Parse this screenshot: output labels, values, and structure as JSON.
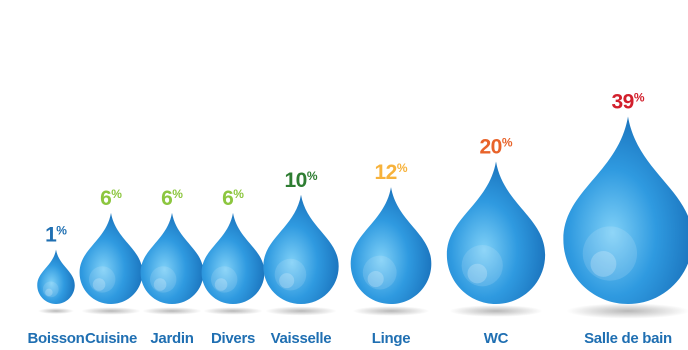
{
  "chart_data": {
    "type": "bar",
    "categories": [
      "Boisson",
      "Cuisine",
      "Jardin",
      "Divers",
      "Vaisselle",
      "Linge",
      "WC",
      "Salle de bain"
    ],
    "values": [
      1,
      6,
      6,
      6,
      10,
      12,
      20,
      39
    ],
    "value_suffix": "%",
    "value_label_colors": [
      "#1f6fb2",
      "#8cc63f",
      "#8cc63f",
      "#8cc63f",
      "#2e7d32",
      "#f7b23b",
      "#e8632a",
      "#d21f2c"
    ],
    "drop_color": "#2a8fd8",
    "label_color": "#1f6fb2",
    "title": "",
    "xlabel": "",
    "ylabel": "",
    "legend": "none",
    "grid": false
  }
}
